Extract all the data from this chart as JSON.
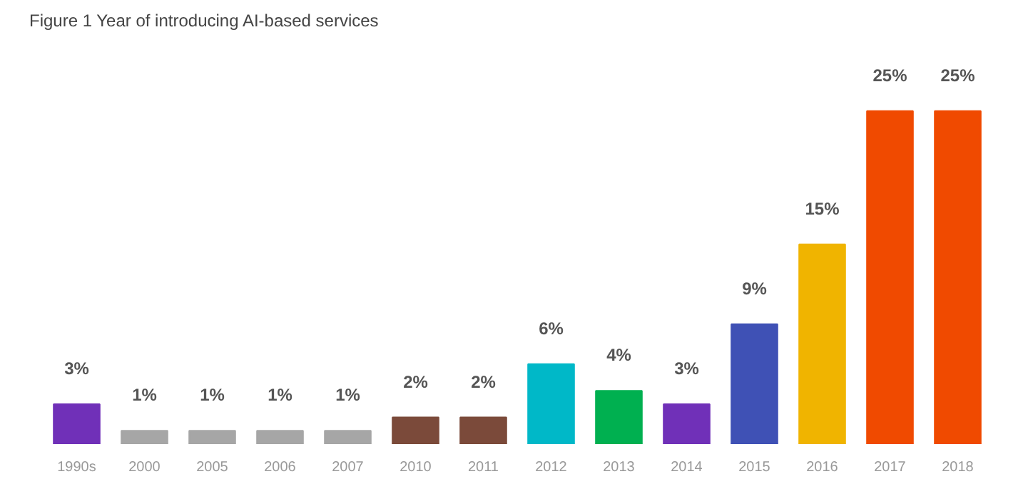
{
  "chart_data": {
    "type": "bar",
    "title": "Figure 1 Year of introducing AI-based services",
    "categories": [
      "1990s",
      "2000",
      "2005",
      "2006",
      "2007",
      "2010",
      "2011",
      "2012",
      "2013",
      "2014",
      "2015",
      "2016",
      "2017",
      "2018"
    ],
    "values": [
      3,
      1,
      1,
      1,
      1,
      2,
      2,
      6,
      4,
      3,
      9,
      15,
      25,
      25
    ],
    "value_labels": [
      "3%",
      "1%",
      "1%",
      "1%",
      "1%",
      "2%",
      "2%",
      "6%",
      "4%",
      "3%",
      "9%",
      "15%",
      "25%",
      "25%"
    ],
    "colors": [
      "#7030b8",
      "#a6a6a6",
      "#a6a6a6",
      "#a6a6a6",
      "#a6a6a6",
      "#7b4a3a",
      "#7b4a3a",
      "#00b8c8",
      "#00b050",
      "#7030b8",
      "#3f51b5",
      "#f0b400",
      "#f04a00",
      "#f04a00"
    ],
    "grid": false
  }
}
